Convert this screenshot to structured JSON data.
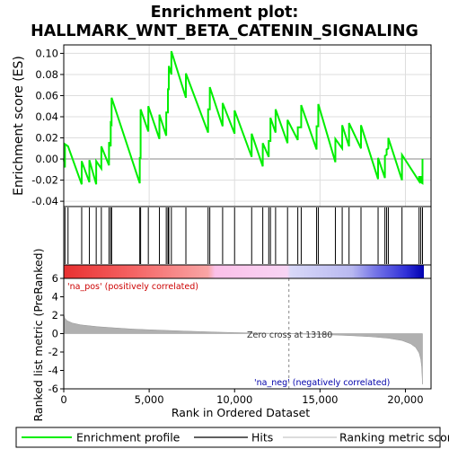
{
  "chart_data": {
    "type": "line",
    "title_line1": "Enrichment plot:",
    "title_line2": "HALLMARK_WNT_BETA_CATENIN_SIGNALING",
    "top_panel": {
      "ylabel": "Enrichment score (ES)",
      "ylim": [
        -0.045,
        0.108
      ],
      "yticks": [
        -0.04,
        -0.02,
        0.0,
        0.02,
        0.04,
        0.06,
        0.08,
        0.1
      ],
      "ytick_labels": [
        "-0.04",
        "-0.02",
        "0.00",
        "0.02",
        "0.04",
        "0.06",
        "0.08",
        "0.10"
      ],
      "grid": true
    },
    "bottom_panel": {
      "ylabel": "Ranked list metric (PreRanked)",
      "ylim": [
        -6,
        6
      ],
      "yticks": [
        6,
        4,
        2,
        0,
        -2,
        -4,
        -6
      ],
      "ytick_labels": [
        "6",
        "4",
        "2",
        "0",
        "-2",
        "-4",
        "-6"
      ]
    },
    "x": {
      "label": "Rank in Ordered Dataset",
      "xlim": [
        0,
        21500
      ],
      "ticks": [
        0,
        5000,
        10000,
        15000,
        20000
      ],
      "tick_labels": [
        "0",
        "5,000",
        "10,000",
        "15,000",
        "20,000"
      ],
      "n_genes": 21000
    },
    "hit_ranks": [
      70,
      250,
      1050,
      1500,
      1900,
      2200,
      2650,
      2750,
      2800,
      4450,
      4500,
      4950,
      5600,
      6000,
      6100,
      6150,
      6300,
      7150,
      8450,
      8550,
      9300,
      10000,
      11000,
      11650,
      12000,
      12100,
      12400,
      13100,
      13700,
      13900,
      14800,
      14900,
      15900,
      16300,
      16700,
      17400,
      18400,
      18800,
      18900,
      19000,
      19800,
      20800,
      20900,
      21000
    ],
    "enrichment_profile": [
      [
        0,
        0
      ],
      [
        70,
        -0.008
      ],
      [
        71,
        0.014
      ],
      [
        250,
        0.012
      ],
      [
        1049,
        -0.024
      ],
      [
        1050,
        -0.002
      ],
      [
        1499,
        -0.022
      ],
      [
        1500,
        -0.001
      ],
      [
        1899,
        -0.024
      ],
      [
        1900,
        -0.002
      ],
      [
        2199,
        -0.009
      ],
      [
        2200,
        0.012
      ],
      [
        2649,
        -0.006
      ],
      [
        2650,
        0.016
      ],
      [
        2749,
        0.012
      ],
      [
        2750,
        0.034
      ],
      [
        2799,
        0.033
      ],
      [
        2800,
        0.058
      ],
      [
        4449,
        -0.023
      ],
      [
        4450,
        0.001
      ],
      [
        4499,
        0.001
      ],
      [
        4500,
        0.047
      ],
      [
        4949,
        0.026
      ],
      [
        4950,
        0.05
      ],
      [
        5599,
        0.019
      ],
      [
        5600,
        0.042
      ],
      [
        5999,
        0.022
      ],
      [
        6000,
        0.044
      ],
      [
        6099,
        0.044
      ],
      [
        6100,
        0.066
      ],
      [
        6149,
        0.066
      ],
      [
        6150,
        0.088
      ],
      [
        6299,
        0.08
      ],
      [
        6300,
        0.102
      ],
      [
        7149,
        0.058
      ],
      [
        7150,
        0.081
      ],
      [
        8449,
        0.025
      ],
      [
        8450,
        0.047
      ],
      [
        8549,
        0.047
      ],
      [
        8550,
        0.068
      ],
      [
        9299,
        0.031
      ],
      [
        9300,
        0.053
      ],
      [
        9999,
        0.024
      ],
      [
        10000,
        0.046
      ],
      [
        10999,
        0.002
      ],
      [
        11000,
        0.024
      ],
      [
        11649,
        -0.007
      ],
      [
        11650,
        0.015
      ],
      [
        11999,
        0.002
      ],
      [
        12000,
        0.017
      ],
      [
        12099,
        0.017
      ],
      [
        12100,
        0.039
      ],
      [
        12399,
        0.025
      ],
      [
        12400,
        0.047
      ],
      [
        13099,
        0.015
      ],
      [
        13100,
        0.037
      ],
      [
        13699,
        0.018
      ],
      [
        13700,
        0.03
      ],
      [
        13899,
        0.03
      ],
      [
        13900,
        0.051
      ],
      [
        14799,
        0.009
      ],
      [
        14800,
        0.031
      ],
      [
        14899,
        0.031
      ],
      [
        14900,
        0.052
      ],
      [
        15899,
        -0.003
      ],
      [
        15900,
        0.019
      ],
      [
        16299,
        0.01
      ],
      [
        16300,
        0.032
      ],
      [
        16699,
        0.012
      ],
      [
        16700,
        0.034
      ],
      [
        17399,
        0.01
      ],
      [
        17400,
        0.032
      ],
      [
        18399,
        -0.019
      ],
      [
        18400,
        0.001
      ],
      [
        18799,
        -0.018
      ],
      [
        18800,
        0.003
      ],
      [
        18899,
        0.004
      ],
      [
        18900,
        0.009
      ],
      [
        18999,
        0.01
      ],
      [
        19000,
        0.02
      ],
      [
        19799,
        -0.02
      ],
      [
        19800,
        0.004
      ],
      [
        20799,
        -0.021
      ],
      [
        20800,
        -0.017
      ],
      [
        20899,
        -0.017
      ],
      [
        20900,
        -0.022
      ],
      [
        20999,
        -0.023
      ],
      [
        21000,
        0.0
      ]
    ],
    "ranked_metric": [
      [
        0,
        2.2
      ],
      [
        50,
        1.7
      ],
      [
        200,
        1.4
      ],
      [
        500,
        1.15
      ],
      [
        1000,
        0.95
      ],
      [
        2000,
        0.75
      ],
      [
        3000,
        0.62
      ],
      [
        4000,
        0.5
      ],
      [
        5000,
        0.42
      ],
      [
        6000,
        0.35
      ],
      [
        7000,
        0.28
      ],
      [
        8000,
        0.22
      ],
      [
        9000,
        0.16
      ],
      [
        10000,
        0.11
      ],
      [
        11000,
        0.07
      ],
      [
        12000,
        0.04
      ],
      [
        13180,
        0.0
      ],
      [
        14000,
        -0.05
      ],
      [
        15000,
        -0.1
      ],
      [
        16000,
        -0.16
      ],
      [
        17000,
        -0.24
      ],
      [
        18000,
        -0.34
      ],
      [
        19000,
        -0.5
      ],
      [
        19800,
        -0.75
      ],
      [
        20300,
        -1.1
      ],
      [
        20600,
        -1.5
      ],
      [
        20800,
        -2.1
      ],
      [
        20900,
        -2.8
      ],
      [
        20950,
        -3.6
      ],
      [
        21000,
        -5.5
      ]
    ],
    "zero_cross": 13180,
    "zero_cross_label": "Zero cross at 13180",
    "pos_label": "'na_pos' (positively correlated)",
    "neg_label": "'na_neg' (negatively correlated)",
    "colors": {
      "profile": "#00ee00",
      "hits": "#000000",
      "metric": "#b0b0b0",
      "grid": "#dddddd",
      "zero_line": "#888888"
    },
    "legend": {
      "placement": "bottom",
      "items": [
        "Enrichment profile",
        "Hits",
        "Ranking metric scores"
      ]
    }
  }
}
